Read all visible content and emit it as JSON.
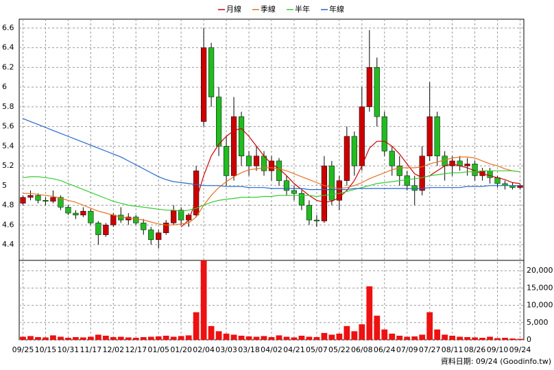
{
  "chart_data": {
    "type": "candlestick",
    "footer": "資料日期: 09/24 (Goodinfo.tw)",
    "categories": [
      "09/25",
      null,
      null,
      "10/15",
      null,
      null,
      "10/31",
      null,
      null,
      "11/17",
      null,
      null,
      "12/02",
      null,
      null,
      "12/17",
      null,
      null,
      "01/05",
      null,
      null,
      "01/20",
      null,
      null,
      "02/04",
      null,
      null,
      "03/03",
      null,
      null,
      "03/18",
      null,
      null,
      "04/02",
      null,
      null,
      "04/21",
      null,
      null,
      "05/07",
      null,
      null,
      "05/22",
      null,
      null,
      "06/08",
      null,
      null,
      "06/24",
      null,
      null,
      "07/09",
      null,
      null,
      "07/27",
      null,
      null,
      "08/11",
      null,
      null,
      "08/26",
      null,
      null,
      "09/10",
      null,
      null,
      "09/24"
    ],
    "open": [
      4.82,
      4.88,
      4.9,
      4.85,
      4.84,
      4.88,
      4.78,
      4.72,
      4.7,
      4.74,
      4.62,
      4.5,
      4.6,
      4.7,
      4.65,
      4.68,
      4.62,
      4.55,
      4.45,
      4.52,
      4.62,
      4.75,
      4.65,
      4.7,
      5.65,
      6.4,
      5.9,
      5.4,
      5.1,
      5.7,
      5.3,
      5.2,
      5.3,
      5.15,
      5.25,
      5.05,
      4.95,
      4.92,
      4.8,
      4.65,
      4.64,
      5.2,
      4.85,
      5.05,
      5.5,
      5.2,
      5.8,
      6.2,
      5.7,
      5.35,
      5.2,
      5.1,
      5.0,
      4.95,
      5.3,
      5.7,
      5.3,
      5.2,
      5.25,
      5.2,
      5.22,
      5.1,
      5.15,
      5.08,
      5.02,
      5.0,
      4.98
    ],
    "high": [
      4.9,
      4.95,
      4.92,
      4.88,
      4.95,
      4.9,
      4.8,
      4.75,
      4.78,
      4.76,
      4.64,
      4.62,
      4.72,
      4.78,
      4.72,
      4.7,
      4.66,
      4.58,
      4.55,
      4.65,
      4.8,
      4.78,
      4.72,
      5.2,
      6.6,
      6.45,
      6.0,
      5.5,
      5.9,
      5.75,
      5.35,
      5.4,
      5.35,
      5.3,
      5.28,
      5.1,
      5.0,
      4.95,
      4.85,
      4.7,
      5.3,
      5.25,
      5.1,
      5.6,
      5.55,
      6.0,
      6.58,
      6.3,
      5.75,
      5.4,
      5.3,
      5.15,
      5.1,
      5.4,
      6.05,
      5.75,
      5.35,
      5.3,
      5.3,
      5.28,
      5.25,
      5.18,
      5.18,
      5.1,
      5.05,
      5.03,
      5.02
    ],
    "low": [
      4.8,
      4.85,
      4.82,
      4.8,
      4.82,
      4.75,
      4.7,
      4.66,
      4.68,
      4.6,
      4.4,
      4.48,
      4.58,
      4.62,
      4.6,
      4.6,
      4.5,
      4.4,
      4.36,
      4.5,
      4.6,
      4.6,
      4.58,
      4.68,
      5.6,
      5.8,
      5.3,
      5.0,
      5.05,
      5.2,
      5.1,
      5.15,
      5.1,
      5.05,
      5.0,
      4.9,
      4.85,
      4.75,
      4.6,
      4.58,
      4.62,
      4.8,
      4.75,
      5.0,
      5.1,
      5.15,
      5.75,
      5.6,
      5.3,
      5.1,
      5.0,
      4.95,
      4.8,
      4.9,
      5.25,
      5.2,
      5.05,
      5.1,
      5.15,
      5.1,
      5.05,
      5.05,
      5.02,
      4.98,
      4.96,
      4.96,
      4.96
    ],
    "close": [
      4.88,
      4.9,
      4.85,
      4.84,
      4.88,
      4.78,
      4.72,
      4.7,
      4.74,
      4.62,
      4.5,
      4.6,
      4.7,
      4.65,
      4.68,
      4.62,
      4.55,
      4.45,
      4.52,
      4.62,
      4.75,
      4.65,
      4.7,
      5.15,
      6.4,
      5.9,
      5.4,
      5.1,
      5.7,
      5.3,
      5.2,
      5.3,
      5.15,
      5.25,
      5.05,
      4.95,
      4.92,
      4.8,
      4.65,
      4.64,
      5.2,
      4.85,
      5.05,
      5.5,
      5.2,
      5.8,
      6.2,
      5.7,
      5.35,
      5.2,
      5.1,
      5.0,
      4.95,
      5.3,
      5.7,
      5.3,
      5.2,
      5.25,
      5.2,
      5.22,
      5.1,
      5.15,
      5.08,
      5.02,
      5.0,
      4.98,
      5.0
    ],
    "up_color": "#cc0000",
    "down_color": "#22bb22",
    "ylim": [
      4.24,
      6.69
    ],
    "yticks": [
      4.4,
      4.6,
      4.8,
      5,
      5.2,
      5.4,
      5.6,
      5.8,
      6,
      6.2,
      6.4,
      6.6
    ],
    "grid": true,
    "series": [
      {
        "name": "月線",
        "color": "#cc0000",
        "values": [
          null,
          null,
          null,
          null,
          null,
          null,
          null,
          null,
          null,
          null,
          null,
          null,
          null,
          null,
          null,
          null,
          null,
          null,
          null,
          null,
          null,
          4.58,
          4.65,
          4.85,
          5.1,
          5.3,
          5.42,
          5.5,
          5.56,
          5.58,
          5.5,
          5.4,
          5.3,
          5.22,
          5.17,
          5.1,
          5.02,
          4.96,
          4.9,
          4.85,
          4.83,
          4.84,
          4.88,
          4.95,
          5.05,
          5.2,
          5.38,
          5.45,
          5.45,
          5.4,
          5.32,
          5.22,
          5.12,
          5.08,
          5.1,
          5.15,
          5.2,
          5.22,
          5.2,
          5.18,
          5.15,
          5.12,
          5.1,
          5.08,
          5.06,
          5.03,
          5.02
        ]
      },
      {
        "name": "季線",
        "color": "#e87020",
        "values": [
          4.92,
          4.92,
          4.91,
          4.9,
          4.89,
          4.87,
          4.85,
          4.83,
          4.8,
          4.77,
          4.74,
          4.72,
          4.7,
          4.68,
          4.67,
          4.66,
          4.65,
          4.63,
          4.61,
          4.6,
          4.6,
          4.61,
          4.62,
          4.68,
          4.8,
          4.9,
          4.98,
          5.04,
          5.09,
          5.13,
          5.16,
          5.17,
          5.18,
          5.18,
          5.17,
          5.15,
          5.12,
          5.09,
          5.06,
          5.03,
          5.0,
          4.98,
          4.97,
          4.98,
          5.0,
          5.03,
          5.07,
          5.1,
          5.13,
          5.16,
          5.18,
          5.18,
          5.18,
          5.19,
          5.22,
          5.24,
          5.26,
          5.28,
          5.29,
          5.29,
          5.28,
          5.25,
          5.22,
          5.2,
          5.17,
          5.15,
          5.14
        ]
      },
      {
        "name": "半年",
        "color": "#33cc33",
        "values": [
          5.08,
          5.09,
          5.09,
          5.08,
          5.07,
          5.05,
          5.02,
          4.99,
          4.96,
          4.93,
          4.9,
          4.87,
          4.84,
          4.82,
          4.8,
          4.79,
          4.78,
          4.77,
          4.76,
          4.75,
          4.75,
          4.74,
          4.75,
          4.77,
          4.8,
          4.83,
          4.85,
          4.86,
          4.87,
          4.88,
          4.88,
          4.88,
          4.89,
          4.89,
          4.9,
          4.9,
          4.9,
          4.9,
          4.9,
          4.89,
          4.9,
          4.91,
          4.92,
          4.94,
          4.96,
          4.98,
          5.0,
          5.02,
          5.03,
          5.04,
          5.05,
          5.06,
          5.07,
          5.08,
          5.1,
          5.11,
          5.12,
          5.13,
          5.13,
          5.14,
          5.14,
          5.15,
          5.15,
          5.15,
          5.15,
          5.15,
          5.14
        ]
      },
      {
        "name": "年線",
        "color": "#2266cc",
        "values": [
          5.68,
          5.65,
          5.62,
          5.59,
          5.56,
          5.53,
          5.5,
          5.47,
          5.44,
          5.41,
          5.38,
          5.35,
          5.32,
          5.29,
          5.25,
          5.21,
          5.17,
          5.13,
          5.09,
          5.06,
          5.04,
          5.03,
          5.02,
          5.01,
          5.0,
          5.0,
          5.0,
          4.99,
          4.99,
          4.99,
          4.98,
          4.98,
          4.98,
          4.97,
          4.97,
          4.97,
          4.97,
          4.97,
          4.96,
          4.96,
          4.96,
          4.96,
          4.96,
          4.96,
          4.97,
          4.97,
          4.97,
          4.97,
          4.97,
          4.97,
          4.97,
          4.97,
          4.97,
          4.97,
          4.98,
          4.98,
          4.98,
          4.98,
          4.98,
          4.99,
          4.99,
          4.99,
          5.0,
          5.0,
          5.0,
          5.0,
          5.0
        ]
      }
    ],
    "volume": {
      "color": "#ee1111",
      "ylim": [
        0,
        23000
      ],
      "yticks": [
        0,
        {
          "value": 5000,
          "label": "5,000"
        },
        {
          "value": 10000,
          "label": "10,000"
        },
        {
          "value": 15000,
          "label": "15,000"
        },
        {
          "value": 20000,
          "label": "20,000"
        }
      ],
      "values": [
        900,
        1100,
        800,
        700,
        1300,
        900,
        600,
        800,
        700,
        900,
        1500,
        1200,
        800,
        900,
        700,
        600,
        800,
        900,
        1000,
        1200,
        900,
        1100,
        1300,
        8000,
        23000,
        4000,
        2500,
        1800,
        1500,
        1200,
        1000,
        900,
        1100,
        800,
        1300,
        900,
        700,
        1200,
        900,
        800,
        2000,
        1500,
        1800,
        4000,
        2500,
        4500,
        15500,
        7000,
        3000,
        1800,
        1200,
        900,
        1000,
        1500,
        8000,
        3000,
        1500,
        1200,
        900,
        800,
        700,
        600,
        900,
        500,
        600,
        400,
        300
      ]
    }
  }
}
